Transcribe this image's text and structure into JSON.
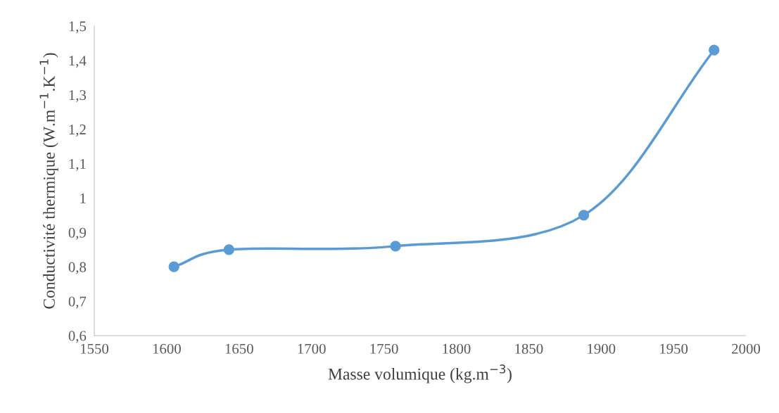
{
  "chart_data": {
    "type": "line",
    "x": [
      1605,
      1643,
      1758,
      1888,
      1978
    ],
    "series": [
      {
        "color": "#5b9bd5",
        "values": [
          0.8,
          0.85,
          0.86,
          0.95,
          1.43
        ]
      }
    ],
    "xlabel": "Masse volumique (kg.m$^{−3}$)",
    "ylabel": "Conductivité thermique (W.m$^{−1}$.K$^{−1}$)",
    "xlim": [
      1550,
      2000
    ],
    "xticks": [
      1550,
      1600,
      1650,
      1700,
      1750,
      1800,
      1850,
      1900,
      1950,
      2000
    ],
    "ylim": [
      0.6,
      1.5
    ],
    "yticks": [
      {
        "value": 0.6,
        "label": "0,6"
      },
      {
        "value": 0.7,
        "label": "0,7"
      },
      {
        "value": 0.8,
        "label": "0,8"
      },
      {
        "value": 0.9,
        "label": "0,9"
      },
      {
        "value": 1,
        "label": "1"
      },
      {
        "value": 1.1,
        "label": "1,1"
      },
      {
        "value": 1.2,
        "label": "1,2"
      },
      {
        "value": 1.3,
        "label": "1,3"
      },
      {
        "value": 1.4,
        "label": "1,4"
      },
      {
        "value": 1.5,
        "label": "1,5"
      }
    ],
    "grid": false,
    "marker": "circle",
    "line_style": "solid"
  }
}
